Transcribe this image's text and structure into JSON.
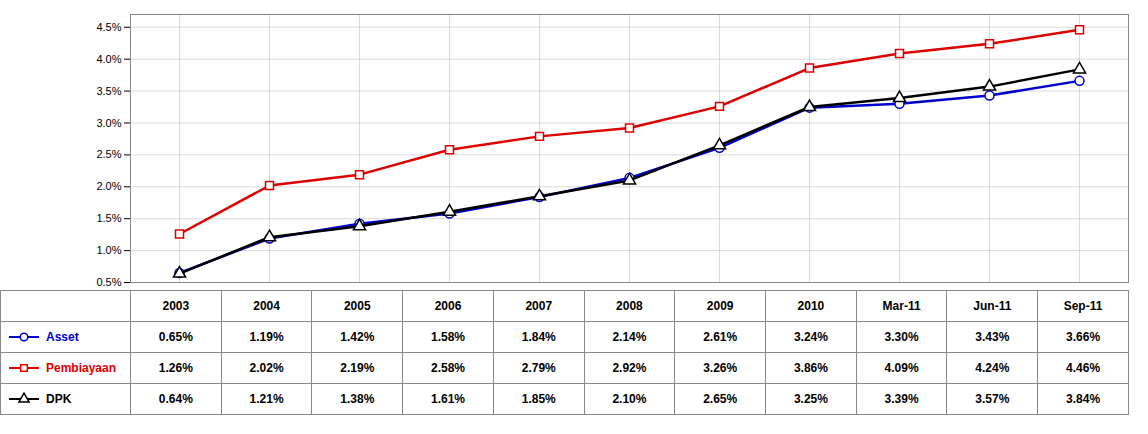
{
  "chart_data": {
    "type": "line",
    "categories": [
      "2003",
      "2004",
      "2005",
      "2006",
      "2007",
      "2008",
      "2009",
      "2010",
      "Mar-11",
      "Jun-11",
      "Sep-11"
    ],
    "series": [
      {
        "name": "Asset",
        "color": "#0000CC",
        "marker": "circle",
        "values": [
          0.0065,
          0.0119,
          0.0142,
          0.0158,
          0.0184,
          0.0214,
          0.0261,
          0.0324,
          0.033,
          0.0343,
          0.0366
        ],
        "value_labels": [
          "0.65%",
          "1.19%",
          "1.42%",
          "1.58%",
          "1.84%",
          "2.14%",
          "2.61%",
          "3.24%",
          "3.30%",
          "3.43%",
          "3.66%"
        ]
      },
      {
        "name": "Pembiayaan",
        "color": "#DD0000",
        "marker": "square",
        "values": [
          0.0126,
          0.0202,
          0.0219,
          0.0258,
          0.0279,
          0.0292,
          0.0326,
          0.0386,
          0.0409,
          0.0424,
          0.0446
        ],
        "value_labels": [
          "1.26%",
          "2.02%",
          "2.19%",
          "2.58%",
          "2.79%",
          "2.92%",
          "3.26%",
          "3.86%",
          "4.09%",
          "4.24%",
          "4.46%"
        ]
      },
      {
        "name": "DPK",
        "color": "#000000",
        "marker": "triangle",
        "values": [
          0.0064,
          0.0121,
          0.0138,
          0.0161,
          0.0185,
          0.021,
          0.0265,
          0.0325,
          0.0339,
          0.0357,
          0.0384
        ],
        "value_labels": [
          "0.64%",
          "1.21%",
          "1.38%",
          "1.61%",
          "1.85%",
          "2.10%",
          "2.65%",
          "3.25%",
          "3.39%",
          "3.57%",
          "3.84%"
        ]
      }
    ],
    "ylim": [
      0.005,
      0.047
    ],
    "yticks": [
      {
        "value": 0.005,
        "label": "0.5%"
      },
      {
        "value": 0.01,
        "label": "1.0%"
      },
      {
        "value": 0.015,
        "label": "1.5%"
      },
      {
        "value": 0.02,
        "label": "2.0%"
      },
      {
        "value": 0.025,
        "label": "2.5%"
      },
      {
        "value": 0.03,
        "label": "3.0%"
      },
      {
        "value": 0.035,
        "label": "3.5%"
      },
      {
        "value": 0.04,
        "label": "4.0%"
      },
      {
        "value": 0.045,
        "label": "4.5%"
      }
    ],
    "grid": true,
    "legend": "bottom",
    "data_labels": true
  }
}
